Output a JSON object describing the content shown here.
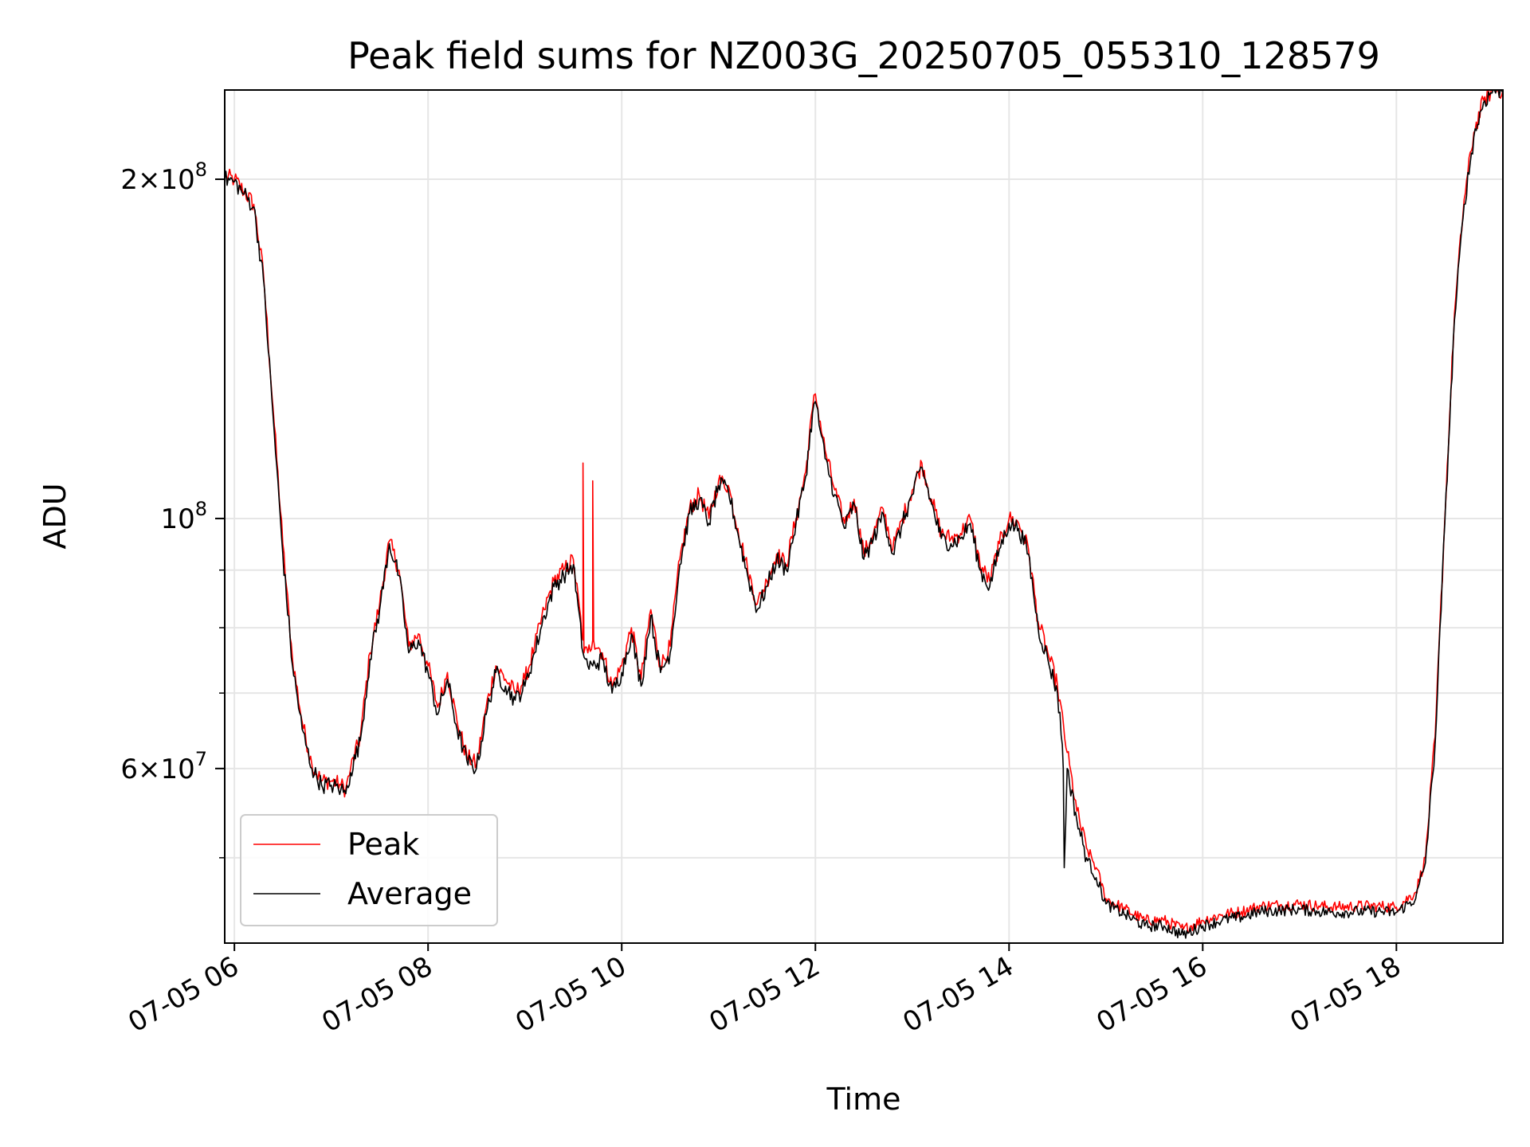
{
  "chart_data": {
    "type": "line",
    "title": "Peak field sums for NZ003G_20250705_055310_128579",
    "xlabel": "Time",
    "ylabel": "ADU",
    "x_unit": "time of day (hours), date 07-05",
    "xlim": [
      5.9,
      19.1
    ],
    "ylim": [
      42000000,
      240000000
    ],
    "yscale": "log",
    "grid": true,
    "legend": "lower-left",
    "x_ticks": [
      {
        "value": 6,
        "label": "07-05 06"
      },
      {
        "value": 8,
        "label": "07-05 08"
      },
      {
        "value": 10,
        "label": "07-05 10"
      },
      {
        "value": 12,
        "label": "07-05 12"
      },
      {
        "value": 14,
        "label": "07-05 14"
      },
      {
        "value": 16,
        "label": "07-05 16"
      },
      {
        "value": 18,
        "label": "07-05 18"
      }
    ],
    "y_ticks": [
      {
        "value": 200000000,
        "base": "2×10",
        "exp": "8"
      },
      {
        "value": 100000000,
        "base": "10",
        "exp": "8"
      },
      {
        "value": 60000000,
        "base": "6×10",
        "exp": "7"
      }
    ],
    "y_minor_ticks": [
      50000000,
      70000000,
      80000000,
      90000000
    ],
    "series": [
      {
        "name": "Peak",
        "color": "#ff0000",
        "x": [
          5.9,
          6.0,
          6.1,
          6.2,
          6.3,
          6.4,
          6.5,
          6.6,
          6.7,
          6.8,
          6.9,
          7.0,
          7.1,
          7.15,
          7.2,
          7.3,
          7.4,
          7.5,
          7.6,
          7.7,
          7.8,
          7.9,
          8.0,
          8.1,
          8.2,
          8.3,
          8.4,
          8.5,
          8.6,
          8.7,
          8.8,
          8.9,
          9.0,
          9.1,
          9.2,
          9.3,
          9.4,
          9.5,
          9.6,
          9.6,
          9.61,
          9.65,
          9.7,
          9.7,
          9.71,
          9.8,
          9.9,
          10.0,
          10.1,
          10.2,
          10.3,
          10.4,
          10.5,
          10.6,
          10.7,
          10.8,
          10.9,
          11.0,
          11.1,
          11.2,
          11.3,
          11.4,
          11.5,
          11.6,
          11.7,
          11.8,
          11.9,
          11.97,
          12.0,
          12.1,
          12.2,
          12.3,
          12.4,
          12.5,
          12.6,
          12.7,
          12.8,
          12.9,
          13.0,
          13.1,
          13.2,
          13.3,
          13.4,
          13.5,
          13.6,
          13.7,
          13.8,
          13.9,
          14.0,
          14.1,
          14.2,
          14.3,
          14.4,
          14.5,
          14.6,
          14.7,
          14.8,
          14.9,
          15.0,
          15.2,
          15.4,
          15.6,
          15.8,
          16.0,
          16.2,
          16.4,
          16.6,
          16.8,
          17.0,
          17.2,
          17.4,
          17.6,
          17.8,
          18.0,
          18.2,
          18.3,
          18.4,
          18.5,
          18.6,
          18.7,
          18.8,
          18.9,
          19.0,
          19.1
        ],
        "y": [
          201000000,
          200000000,
          195000000,
          190000000,
          165000000,
          125000000,
          95000000,
          75000000,
          66000000,
          60500000,
          58500000,
          58500000,
          58000000,
          57500000,
          60000000,
          64000000,
          76000000,
          84000000,
          95500000,
          90000000,
          77000000,
          79000000,
          74000000,
          68000000,
          73000000,
          66000000,
          61500000,
          60500000,
          68000000,
          74000000,
          72000000,
          70000000,
          72000000,
          77000000,
          83000000,
          88000000,
          90000000,
          92000000,
          78000000,
          112000000,
          76000000,
          76000000,
          78000000,
          108000000,
          78000000,
          76000000,
          71000000,
          74000000,
          80000000,
          72000000,
          83000000,
          74000000,
          77000000,
          92000000,
          102000000,
          105000000,
          100000000,
          108000000,
          107000000,
          98000000,
          90000000,
          84000000,
          88000000,
          93000000,
          91000000,
          100000000,
          110000000,
          125000000,
          129000000,
          115000000,
          106000000,
          99000000,
          104000000,
          93000000,
          97000000,
          102000000,
          94000000,
          100000000,
          106000000,
          112000000,
          104000000,
          97000000,
          96000000,
          97000000,
          100000000,
          91000000,
          88000000,
          95000000,
          100000000,
          99000000,
          94000000,
          81000000,
          76000000,
          71000000,
          62000000,
          55000000,
          51000000,
          49000000,
          46000000,
          45000000,
          44000000,
          44000000,
          43200000,
          44000000,
          44500000,
          44800000,
          45300000,
          45400000,
          45500000,
          45300000,
          45200000,
          45300000,
          45300000,
          45200000,
          46600000,
          50000000,
          64000000,
          100000000,
          152000000,
          192000000,
          220000000,
          235000000,
          240000000,
          240000000
        ]
      },
      {
        "name": "Average",
        "color": "#000000",
        "x": [
          5.9,
          6.0,
          6.1,
          6.2,
          6.3,
          6.4,
          6.5,
          6.6,
          6.7,
          6.8,
          6.9,
          7.0,
          7.1,
          7.15,
          7.2,
          7.3,
          7.4,
          7.5,
          7.6,
          7.7,
          7.8,
          7.9,
          8.0,
          8.1,
          8.2,
          8.3,
          8.4,
          8.5,
          8.6,
          8.7,
          8.8,
          8.9,
          9.0,
          9.1,
          9.2,
          9.3,
          9.4,
          9.5,
          9.6,
          9.65,
          9.7,
          9.8,
          9.9,
          10.0,
          10.1,
          10.2,
          10.3,
          10.4,
          10.5,
          10.6,
          10.7,
          10.8,
          10.9,
          11.0,
          11.1,
          11.2,
          11.3,
          11.4,
          11.5,
          11.6,
          11.7,
          11.8,
          11.9,
          11.97,
          12.0,
          12.1,
          12.2,
          12.3,
          12.4,
          12.5,
          12.6,
          12.7,
          12.8,
          12.9,
          13.0,
          13.1,
          13.2,
          13.3,
          13.4,
          13.5,
          13.6,
          13.7,
          13.8,
          13.9,
          14.0,
          14.1,
          14.2,
          14.3,
          14.4,
          14.5,
          14.55,
          14.56,
          14.57,
          14.6,
          14.7,
          14.8,
          14.9,
          15.0,
          15.2,
          15.4,
          15.6,
          15.8,
          16.0,
          16.2,
          16.4,
          16.6,
          16.8,
          17.0,
          17.2,
          17.4,
          17.6,
          17.8,
          18.0,
          18.2,
          18.3,
          18.4,
          18.5,
          18.6,
          18.7,
          18.8,
          18.9,
          19.0,
          19.1
        ],
        "y": [
          200000000,
          199000000,
          194000000,
          189000000,
          163000000,
          123000000,
          93000000,
          74000000,
          65000000,
          60000000,
          58000000,
          58000000,
          57500000,
          57000000,
          59500000,
          63500000,
          75000000,
          83000000,
          95000000,
          89000000,
          76000000,
          78000000,
          73000000,
          67000000,
          72000000,
          65000000,
          61000000,
          60000000,
          67000000,
          73000000,
          71000000,
          69000000,
          71000000,
          76000000,
          82000000,
          87000000,
          89000000,
          91000000,
          76000000,
          74000000,
          74000000,
          75000000,
          70000000,
          73000000,
          79000000,
          71000000,
          82000000,
          73000000,
          76000000,
          91000000,
          101000000,
          104000000,
          99000000,
          107000000,
          106000000,
          97000000,
          89000000,
          83000000,
          87000000,
          92000000,
          90000000,
          99000000,
          109000000,
          124000000,
          127000000,
          113000000,
          105000000,
          98000000,
          103000000,
          92000000,
          96000000,
          101000000,
          93000000,
          99000000,
          105000000,
          111000000,
          103000000,
          96000000,
          95000000,
          96000000,
          99000000,
          90000000,
          87000000,
          94000000,
          99000000,
          98000000,
          93000000,
          80000000,
          75000000,
          70000000,
          63000000,
          60000000,
          49000000,
          60000000,
          54000000,
          50000000,
          48000000,
          45500000,
          44500000,
          43500000,
          43500000,
          42700000,
          43500000,
          44000000,
          44300000,
          44800000,
          44900000,
          45000000,
          44800000,
          44700000,
          44800000,
          44800000,
          44700000,
          46000000,
          49500000,
          63000000,
          99000000,
          150000000,
          190000000,
          218000000,
          234000000,
          240000000,
          240000000
        ]
      }
    ]
  }
}
